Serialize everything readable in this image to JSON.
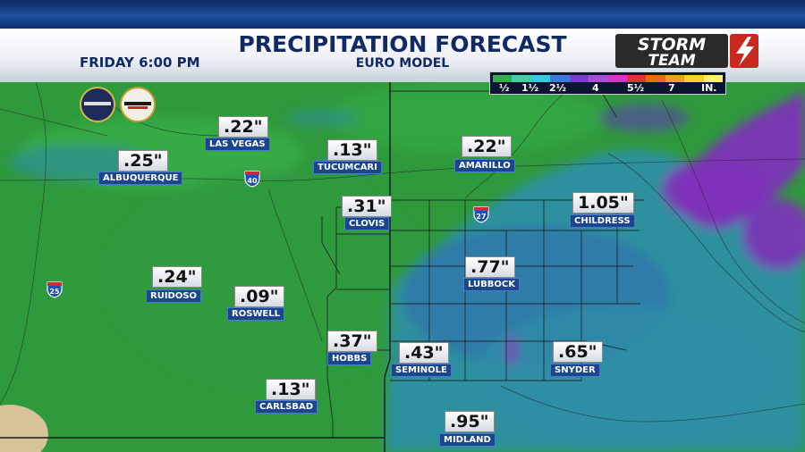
{
  "header": {
    "title": "PRECIPITATION FORECAST",
    "subtitle": "EURO MODEL",
    "day_time": "FRIDAY  6:00 PM",
    "brand_line1": "STORM",
    "brand_line2": "TEAM"
  },
  "legend": {
    "labels": [
      "½",
      "1½",
      "2½",
      "4",
      "5½",
      "7",
      "IN."
    ],
    "colors": [
      "#33b04a",
      "#3fcfa0",
      "#33c9e0",
      "#3a7ad9",
      "#7b3bd0",
      "#a84fd6",
      "#d238c8",
      "#e03434",
      "#e86a1f",
      "#f0a021",
      "#f6d22c",
      "#fff36b"
    ]
  },
  "map": {
    "colors": {
      "light": "#2f9a3c",
      "mid": "#3fb24a",
      "blue": "#2d8fb0",
      "purple": "#7d33b8",
      "coast": "#d7c39a"
    },
    "cities": [
      {
        "name": "LAS VEGAS",
        "amount": ".22\""
      },
      {
        "name": "ALBUQUERQUE",
        "amount": ".25\""
      },
      {
        "name": "TUCUMCARI",
        "amount": ".13\""
      },
      {
        "name": "AMARILLO",
        "amount": ".22\""
      },
      {
        "name": "CLOVIS",
        "amount": ".31\""
      },
      {
        "name": "CHILDRESS",
        "amount": "1.05\""
      },
      {
        "name": "RUIDOSO",
        "amount": ".24\""
      },
      {
        "name": "ROSWELL",
        "amount": ".09\""
      },
      {
        "name": "LUBBOCK",
        "amount": ".77\""
      },
      {
        "name": "HOBBS",
        "amount": ".37\""
      },
      {
        "name": "SEMINOLE",
        "amount": ".43\""
      },
      {
        "name": "SNYDER",
        "amount": ".65\""
      },
      {
        "name": "CARLSBAD",
        "amount": ".13\""
      },
      {
        "name": "MIDLAND",
        "amount": ".95\""
      }
    ],
    "shields": [
      "40",
      "27",
      "25"
    ],
    "logos": [
      "LUBBOCK POLICE",
      "FIRE"
    ]
  }
}
